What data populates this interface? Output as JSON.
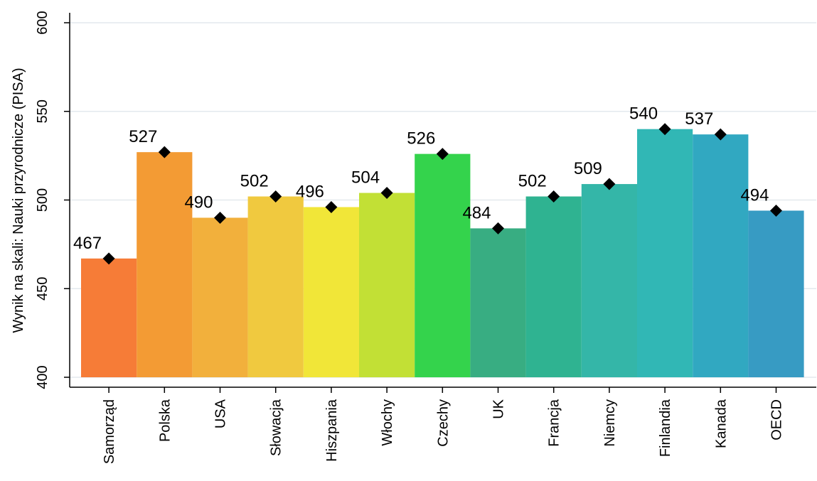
{
  "chart_data": {
    "type": "bar",
    "ylabel": "Wynik na skali: Nauki przyrodnicze (PISA)",
    "xlabel": "",
    "ylim": [
      400,
      600
    ],
    "yticks": [
      400,
      450,
      500,
      550,
      600
    ],
    "grid": true,
    "marker": "diamond",
    "categories": [
      "Samorząd",
      "Polska",
      "USA",
      "Słowacja",
      "Hiszpania",
      "Włochy",
      "Czechy",
      "UK",
      "Francja",
      "Niemcy",
      "Finlandia",
      "Kanada",
      "OECD"
    ],
    "values": [
      467,
      527,
      490,
      502,
      496,
      504,
      526,
      484,
      502,
      509,
      540,
      537,
      494
    ],
    "data_labels": [
      "467",
      "527",
      "490",
      "502",
      "496",
      "504",
      "526",
      "484",
      "502",
      "509",
      "540",
      "537",
      "494"
    ],
    "colors": [
      "#f67c37",
      "#f39b34",
      "#f2b03c",
      "#f0c93f",
      "#f1e638",
      "#c2e035",
      "#34d34c",
      "#38ad82",
      "#2fb391",
      "#34b6a8",
      "#31b7b5",
      "#31a8c1",
      "#379bc3"
    ]
  }
}
